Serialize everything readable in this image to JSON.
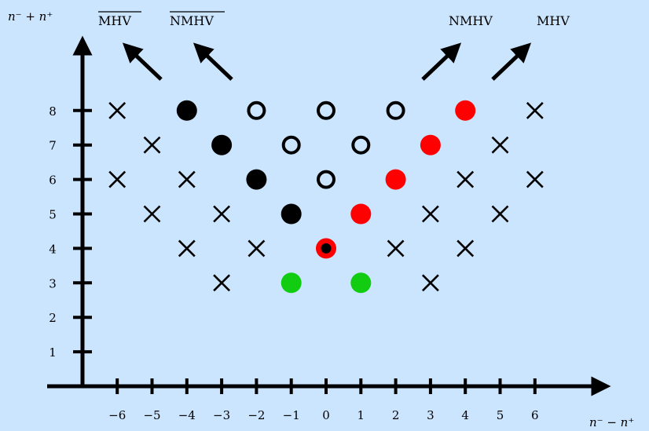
{
  "axes": {
    "y_title": "n⁻ + n⁺",
    "x_title": "n⁻ − n⁺",
    "x_ticks": [
      "−6",
      "−5",
      "−4",
      "−3",
      "−2",
      "−1",
      "0",
      "1",
      "2",
      "3",
      "4",
      "5",
      "6"
    ],
    "y_ticks": [
      "1",
      "2",
      "3",
      "4",
      "5",
      "6",
      "7",
      "8"
    ]
  },
  "corner_labels": {
    "top_left_1": "MHV",
    "top_left_2": "NMHV",
    "top_right_1": "NMHV",
    "top_right_2": "MHV"
  },
  "colors": {
    "background": "#cce5ff",
    "red": "#ff0000",
    "green": "#11cc11",
    "black": "#000000"
  },
  "markers": [
    {
      "x": -6,
      "y": 8,
      "kind": "cross"
    },
    {
      "x": -4,
      "y": 8,
      "kind": "black-dot"
    },
    {
      "x": -2,
      "y": 8,
      "kind": "ring"
    },
    {
      "x": 0,
      "y": 8,
      "kind": "ring"
    },
    {
      "x": 2,
      "y": 8,
      "kind": "ring"
    },
    {
      "x": 4,
      "y": 8,
      "kind": "red-dot"
    },
    {
      "x": 6,
      "y": 8,
      "kind": "cross"
    },
    {
      "x": -5,
      "y": 7,
      "kind": "cross"
    },
    {
      "x": -3,
      "y": 7,
      "kind": "black-dot"
    },
    {
      "x": -1,
      "y": 7,
      "kind": "ring"
    },
    {
      "x": 1,
      "y": 7,
      "kind": "ring"
    },
    {
      "x": 3,
      "y": 7,
      "kind": "red-dot"
    },
    {
      "x": 5,
      "y": 7,
      "kind": "cross"
    },
    {
      "x": -6,
      "y": 6,
      "kind": "cross"
    },
    {
      "x": -4,
      "y": 6,
      "kind": "cross"
    },
    {
      "x": -2,
      "y": 6,
      "kind": "black-dot"
    },
    {
      "x": 0,
      "y": 6,
      "kind": "ring"
    },
    {
      "x": 2,
      "y": 6,
      "kind": "red-dot"
    },
    {
      "x": 4,
      "y": 6,
      "kind": "cross"
    },
    {
      "x": 6,
      "y": 6,
      "kind": "cross"
    },
    {
      "x": -5,
      "y": 5,
      "kind": "cross"
    },
    {
      "x": -3,
      "y": 5,
      "kind": "cross"
    },
    {
      "x": -1,
      "y": 5,
      "kind": "black-dot"
    },
    {
      "x": 1,
      "y": 5,
      "kind": "red-dot"
    },
    {
      "x": 3,
      "y": 5,
      "kind": "cross"
    },
    {
      "x": 5,
      "y": 5,
      "kind": "cross"
    },
    {
      "x": -4,
      "y": 4,
      "kind": "cross"
    },
    {
      "x": -2,
      "y": 4,
      "kind": "cross"
    },
    {
      "x": 0,
      "y": 4,
      "kind": "red-black-dot"
    },
    {
      "x": 2,
      "y": 4,
      "kind": "cross"
    },
    {
      "x": 4,
      "y": 4,
      "kind": "cross"
    },
    {
      "x": -3,
      "y": 3,
      "kind": "cross"
    },
    {
      "x": -1,
      "y": 3,
      "kind": "green-dot"
    },
    {
      "x": 1,
      "y": 3,
      "kind": "green-dot"
    },
    {
      "x": 3,
      "y": 3,
      "kind": "cross"
    }
  ]
}
